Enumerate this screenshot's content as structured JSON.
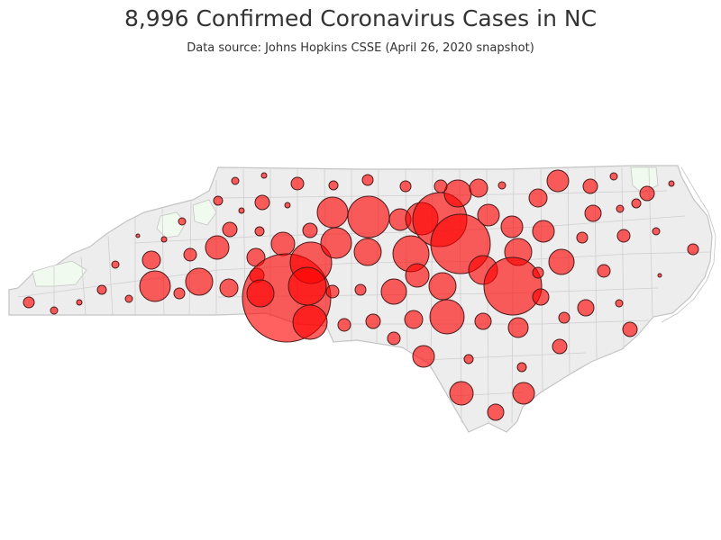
{
  "map": {
    "title": "8,996 Confirmed Coronavirus Cases in NC",
    "subtitle": "Data source: Johns Hopkins CSSE (April 26, 2020 snapshot)",
    "state": "North Carolina",
    "colors": {
      "background": "#ffffff",
      "land": "#ededed",
      "county_border": "#c4c4c4",
      "bubble_fill": "#ff0000",
      "bubble_opacity": 0.62,
      "bubble_stroke": "#4a1a1a",
      "low_case_tint": "#f1faef"
    }
  }
}
